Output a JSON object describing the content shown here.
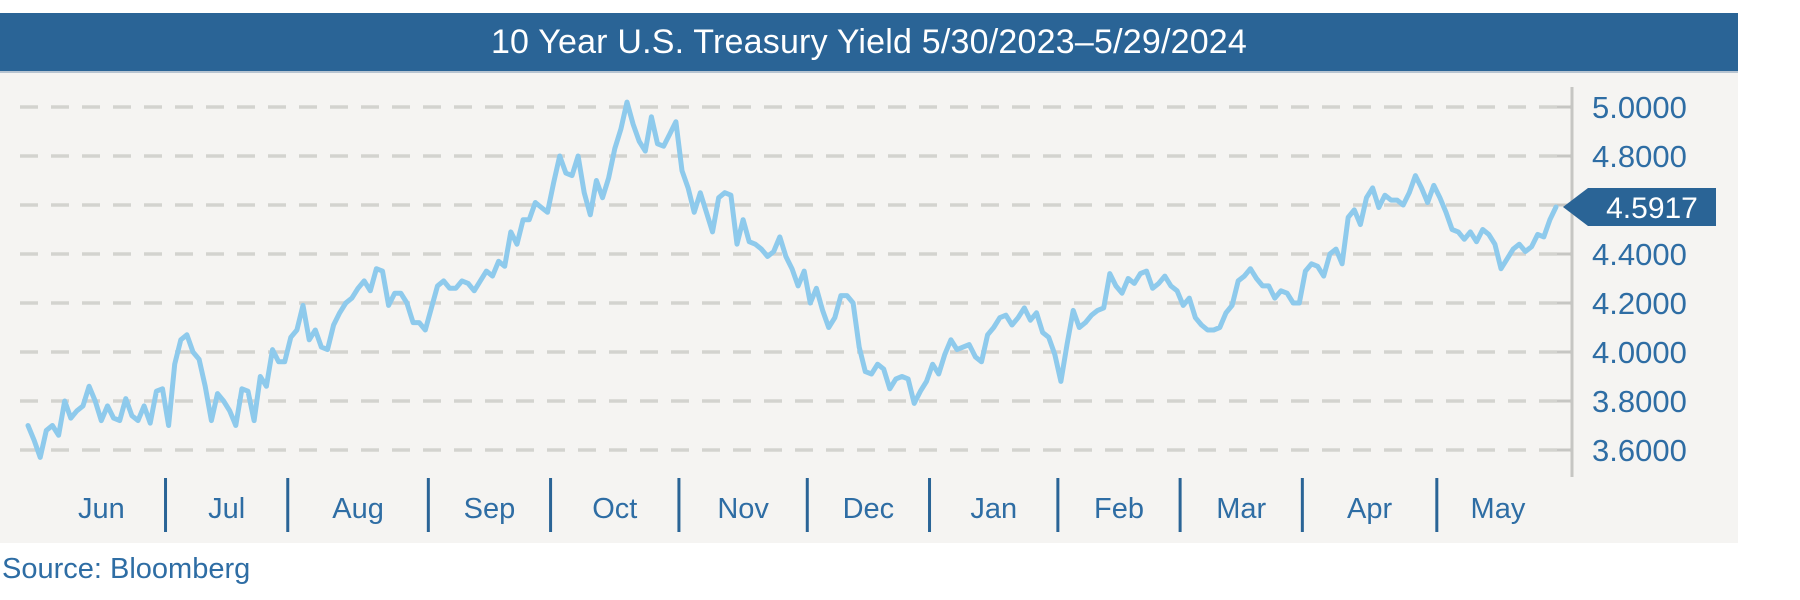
{
  "title": "10 Year U.S. Treasury Yield 5/30/2023–5/29/2024",
  "source": "Source: Bloomberg",
  "colors": {
    "brand_blue": "#2A6496",
    "label_blue": "#2E6DA4",
    "line_blue": "#8ECAEC",
    "plot_bg": "#F5F4F2",
    "grid": "#D3D3CF",
    "axis": "#C6C6C3",
    "title_text": "#FFFFFF"
  },
  "chart_data": {
    "type": "line",
    "title": "10 Year U.S. Treasury Yield 5/30/2023–5/29/2024",
    "xlabel": "",
    "ylabel": "",
    "ylim": [
      3.6,
      5.0
    ],
    "grid": "dashed-horizontal",
    "legend": "none",
    "y_axis_side": "right",
    "y_gridlines": [
      5.0,
      4.8,
      4.6,
      4.4,
      4.2,
      4.0,
      3.8,
      3.6
    ],
    "y_tick_labels": [
      {
        "value": 5.0,
        "label": "5.0000"
      },
      {
        "value": 4.8,
        "label": "4.8000"
      },
      {
        "value": 4.4,
        "label": "4.4000"
      },
      {
        "value": 4.2,
        "label": "4.2000"
      },
      {
        "value": 4.0,
        "label": "4.0000"
      },
      {
        "value": 3.8,
        "label": "3.8000"
      },
      {
        "value": 3.6,
        "label": "3.6000"
      }
    ],
    "current": {
      "value": 4.5917,
      "label": "4.5917"
    },
    "lead_in_values": [
      3.7,
      3.64
    ],
    "months": [
      {
        "label": "Jun",
        "values": [
          3.57,
          3.68,
          3.7,
          3.66,
          3.8,
          3.73,
          3.76,
          3.78,
          3.86,
          3.8,
          3.72,
          3.78,
          3.73,
          3.72,
          3.81,
          3.74,
          3.72,
          3.78,
          3.71,
          3.84,
          3.85
        ]
      },
      {
        "label": "Jul",
        "values": [
          3.7,
          3.95,
          4.05,
          4.07,
          4.0,
          3.97,
          3.86,
          3.72,
          3.83,
          3.8,
          3.76,
          3.7,
          3.85,
          3.84,
          3.72,
          3.9,
          3.86,
          4.01,
          3.96,
          3.96
        ]
      },
      {
        "label": "Aug",
        "values": [
          4.06,
          4.09,
          4.19,
          4.05,
          4.09,
          4.02,
          4.01,
          4.11,
          4.16,
          4.2,
          4.22,
          4.26,
          4.29,
          4.25,
          4.34,
          4.33,
          4.19,
          4.24,
          4.24,
          4.2,
          4.12,
          4.12,
          4.09
        ]
      },
      {
        "label": "Sep",
        "values": [
          4.18,
          4.27,
          4.29,
          4.26,
          4.26,
          4.29,
          4.28,
          4.25,
          4.29,
          4.33,
          4.31,
          4.37,
          4.35,
          4.49,
          4.44,
          4.54,
          4.54,
          4.61,
          4.59,
          4.57
        ]
      },
      {
        "label": "Oct",
        "values": [
          4.69,
          4.8,
          4.73,
          4.72,
          4.8,
          4.65,
          4.56,
          4.7,
          4.63,
          4.71,
          4.83,
          4.91,
          5.02,
          4.93,
          4.86,
          4.82,
          4.96,
          4.85,
          4.84,
          4.89,
          4.94
        ]
      },
      {
        "label": "Nov",
        "values": [
          4.74,
          4.67,
          4.57,
          4.65,
          4.57,
          4.49,
          4.63,
          4.65,
          4.64,
          4.44,
          4.54,
          4.45,
          4.44,
          4.42,
          4.39,
          4.41,
          4.47,
          4.39,
          4.34,
          4.27,
          4.33
        ]
      },
      {
        "label": "Dec",
        "values": [
          4.2,
          4.26,
          4.17,
          4.1,
          4.14,
          4.23,
          4.23,
          4.2,
          4.02,
          3.92,
          3.91,
          3.95,
          3.93,
          3.85,
          3.89,
          3.9,
          3.89,
          3.79,
          3.84,
          3.88
        ]
      },
      {
        "label": "Jan",
        "values": [
          3.95,
          3.91,
          3.99,
          4.05,
          4.01,
          4.02,
          4.03,
          3.98,
          3.96,
          4.07,
          4.1,
          4.14,
          4.15,
          4.11,
          4.14,
          4.18,
          4.13,
          4.16,
          4.08,
          4.06,
          3.99
        ]
      },
      {
        "label": "Feb",
        "values": [
          3.88,
          4.03,
          4.17,
          4.1,
          4.12,
          4.15,
          4.17,
          4.18,
          4.32,
          4.27,
          4.24,
          4.3,
          4.28,
          4.32,
          4.33,
          4.26,
          4.28,
          4.31,
          4.27,
          4.25
        ]
      },
      {
        "label": "Mar",
        "values": [
          4.19,
          4.22,
          4.14,
          4.11,
          4.09,
          4.09,
          4.1,
          4.16,
          4.19,
          4.29,
          4.31,
          4.34,
          4.3,
          4.27,
          4.27,
          4.22,
          4.25,
          4.24,
          4.2,
          4.2
        ]
      },
      {
        "label": "Apr",
        "values": [
          4.33,
          4.36,
          4.35,
          4.31,
          4.4,
          4.42,
          4.36,
          4.55,
          4.58,
          4.52,
          4.63,
          4.67,
          4.59,
          4.64,
          4.62,
          4.62,
          4.6,
          4.65,
          4.72,
          4.67,
          4.61,
          4.68
        ]
      },
      {
        "label": "May",
        "values": [
          4.63,
          4.57,
          4.5,
          4.49,
          4.46,
          4.49,
          4.45,
          4.5,
          4.48,
          4.44,
          4.34,
          4.38,
          4.42,
          4.44,
          4.41,
          4.43,
          4.48,
          4.47,
          4.54,
          4.5917
        ]
      }
    ]
  }
}
